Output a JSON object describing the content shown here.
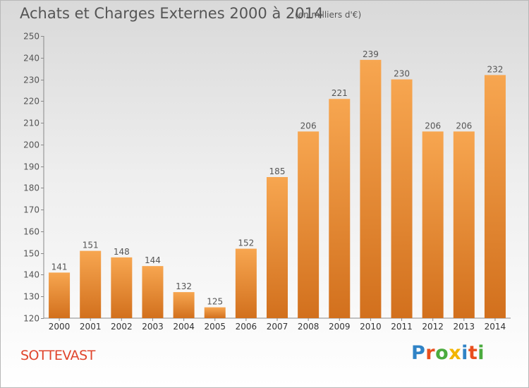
{
  "header": {
    "title": "Achats et Charges Externes 2000 à 2014",
    "subtitle": "(en milliers d'€)"
  },
  "footer": {
    "city": "SOTTEVAST",
    "logo": {
      "text": "Proxiti",
      "letter_colors": [
        "#2f83c6",
        "#e94f1d",
        "#4bab3e",
        "#f2b400",
        "#2f83c6",
        "#e94f1d",
        "#4bab3e"
      ]
    }
  },
  "colors": {
    "bar_top": "#f7a650",
    "bar_bottom": "#d2701d",
    "text": "#555555"
  },
  "chart_data": {
    "type": "bar",
    "title": "Achats et Charges Externes 2000 à 2014",
    "subtitle": "(en milliers d'€)",
    "categories": [
      "2000",
      "2001",
      "2002",
      "2003",
      "2004",
      "2005",
      "2006",
      "2007",
      "2008",
      "2009",
      "2010",
      "2011",
      "2012",
      "2013",
      "2014"
    ],
    "values": [
      141,
      151,
      148,
      144,
      132,
      125,
      152,
      185,
      206,
      221,
      239,
      230,
      206,
      206,
      232
    ],
    "ylim": [
      120,
      250
    ],
    "yticks": [
      120,
      130,
      140,
      150,
      160,
      170,
      180,
      190,
      200,
      210,
      220,
      230,
      240,
      250
    ],
    "grid": false,
    "data_labels": true
  }
}
